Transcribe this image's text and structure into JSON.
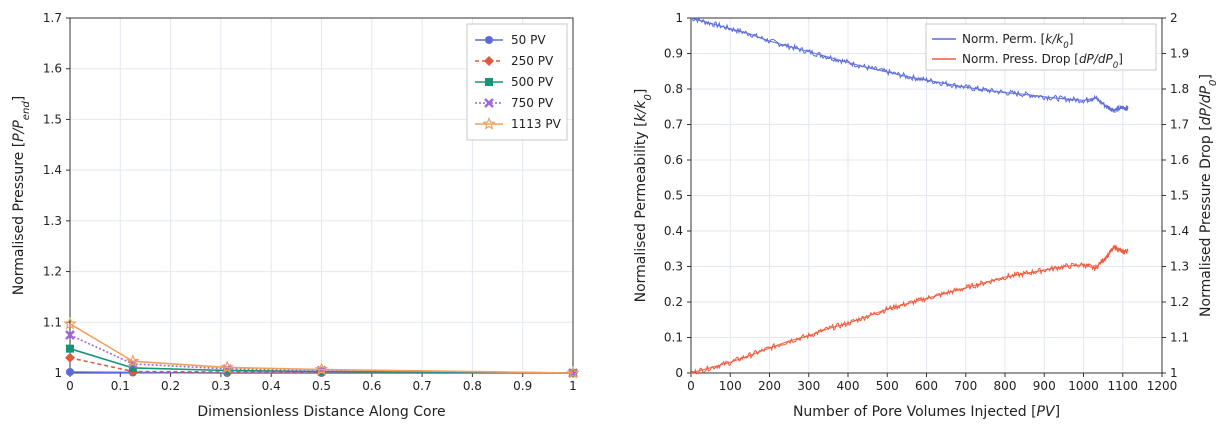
{
  "chart_data": [
    {
      "type": "line",
      "xlabel": "Dimensionless Distance Along Core",
      "ylabel_main": "Normalised Pressure [",
      "ylabel_ital": "P/P",
      "ylabel_sub": "end",
      "ylabel_end": "]",
      "xlim": [
        0,
        1
      ],
      "ylim": [
        1,
        1.7
      ],
      "xticks": [
        "0",
        "0.1",
        "0.2",
        "0.3",
        "0.4",
        "0.5",
        "0.6",
        "0.7",
        "0.8",
        "0.9",
        "1"
      ],
      "yticks": [
        "1",
        "1.1",
        "1.2",
        "1.3",
        "1.4",
        "1.5",
        "1.6",
        "1.7"
      ],
      "grid": true,
      "legend_position": "top-right",
      "x": [
        0,
        0.125,
        0.3125,
        0.5,
        1
      ],
      "series": [
        {
          "name": "50 PV",
          "marker": "circle",
          "dash": "solid",
          "color": "#5b6bd8",
          "values": [
            1.002,
            1.001,
            1.0,
            1.0,
            1.0
          ]
        },
        {
          "name": "250 PV",
          "marker": "diamond",
          "dash": "dashed",
          "color": "#e0593c",
          "values": [
            1.03,
            1.003,
            1.002,
            1.002,
            1.0
          ]
        },
        {
          "name": "500 PV",
          "marker": "square",
          "dash": "solid",
          "color": "#14957a",
          "values": [
            1.048,
            1.01,
            1.005,
            1.003,
            1.0
          ]
        },
        {
          "name": "750 PV",
          "marker": "x",
          "dash": "dotted",
          "color": "#a066d6",
          "values": [
            1.075,
            1.018,
            1.008,
            1.005,
            1.0
          ]
        },
        {
          "name": "1113 PV",
          "marker": "star",
          "dash": "solid",
          "color": "#f3a05c",
          "values": [
            1.097,
            1.023,
            1.011,
            1.007,
            1.0
          ]
        }
      ]
    },
    {
      "type": "line",
      "xlabel_main": "Number of Pore Volumes Injected [",
      "xlabel_ital": "PV",
      "xlabel_end": "]",
      "ylabel_left_main": "Normalised Permeability [",
      "ylabel_left_ital": "k/k",
      "ylabel_left_sub": "0",
      "ylabel_left_end": "]",
      "ylabel_right_main": "Normalised Pressure Drop [",
      "ylabel_right_ital": "dP/dP",
      "ylabel_right_sub": "0",
      "ylabel_right_end": "]",
      "xlim": [
        0,
        1200
      ],
      "ylim_left": [
        0,
        1
      ],
      "ylim_right": [
        1,
        2
      ],
      "xticks": [
        "0",
        "100",
        "200",
        "300",
        "400",
        "500",
        "600",
        "700",
        "800",
        "900",
        "1000",
        "1100",
        "1200"
      ],
      "yticks_left": [
        "0",
        "0.1",
        "0.2",
        "0.3",
        "0.4",
        "0.5",
        "0.6",
        "0.7",
        "0.8",
        "0.9",
        "1"
      ],
      "yticks_right": [
        "1",
        "1.1",
        "1.2",
        "1.3",
        "1.4",
        "1.5",
        "1.6",
        "1.7",
        "1.8",
        "1.9",
        "2"
      ],
      "grid": true,
      "legend_position": "top-right",
      "series": [
        {
          "name_main": "Norm. Perm. [",
          "name_ital": "k/k",
          "name_sub": "0",
          "name_end": "]",
          "axis": "left",
          "color": "#5b6bd8",
          "x": [
            0,
            50,
            100,
            150,
            200,
            250,
            300,
            350,
            400,
            450,
            500,
            550,
            600,
            650,
            700,
            750,
            800,
            850,
            900,
            950,
            1000,
            1030,
            1060,
            1080,
            1100,
            1113
          ],
          "y": [
            1.0,
            0.985,
            0.97,
            0.955,
            0.935,
            0.92,
            0.905,
            0.89,
            0.875,
            0.86,
            0.848,
            0.835,
            0.825,
            0.815,
            0.805,
            0.797,
            0.79,
            0.785,
            0.778,
            0.772,
            0.768,
            0.775,
            0.75,
            0.74,
            0.748,
            0.745
          ]
        },
        {
          "name_main": "Norm. Press. Drop [",
          "name_ital": "dP/dP",
          "name_sub": "0",
          "name_end": "]",
          "axis": "right",
          "color": "#f05a3c",
          "x": [
            0,
            50,
            100,
            150,
            200,
            250,
            300,
            350,
            400,
            450,
            500,
            550,
            600,
            650,
            700,
            750,
            800,
            850,
            900,
            950,
            1000,
            1030,
            1060,
            1080,
            1100,
            1113
          ],
          "y": [
            1.0,
            1.015,
            1.03,
            1.05,
            1.07,
            1.09,
            1.105,
            1.125,
            1.14,
            1.16,
            1.18,
            1.195,
            1.21,
            1.225,
            1.24,
            1.255,
            1.27,
            1.28,
            1.29,
            1.3,
            1.305,
            1.295,
            1.33,
            1.355,
            1.34,
            1.345
          ]
        }
      ]
    }
  ]
}
